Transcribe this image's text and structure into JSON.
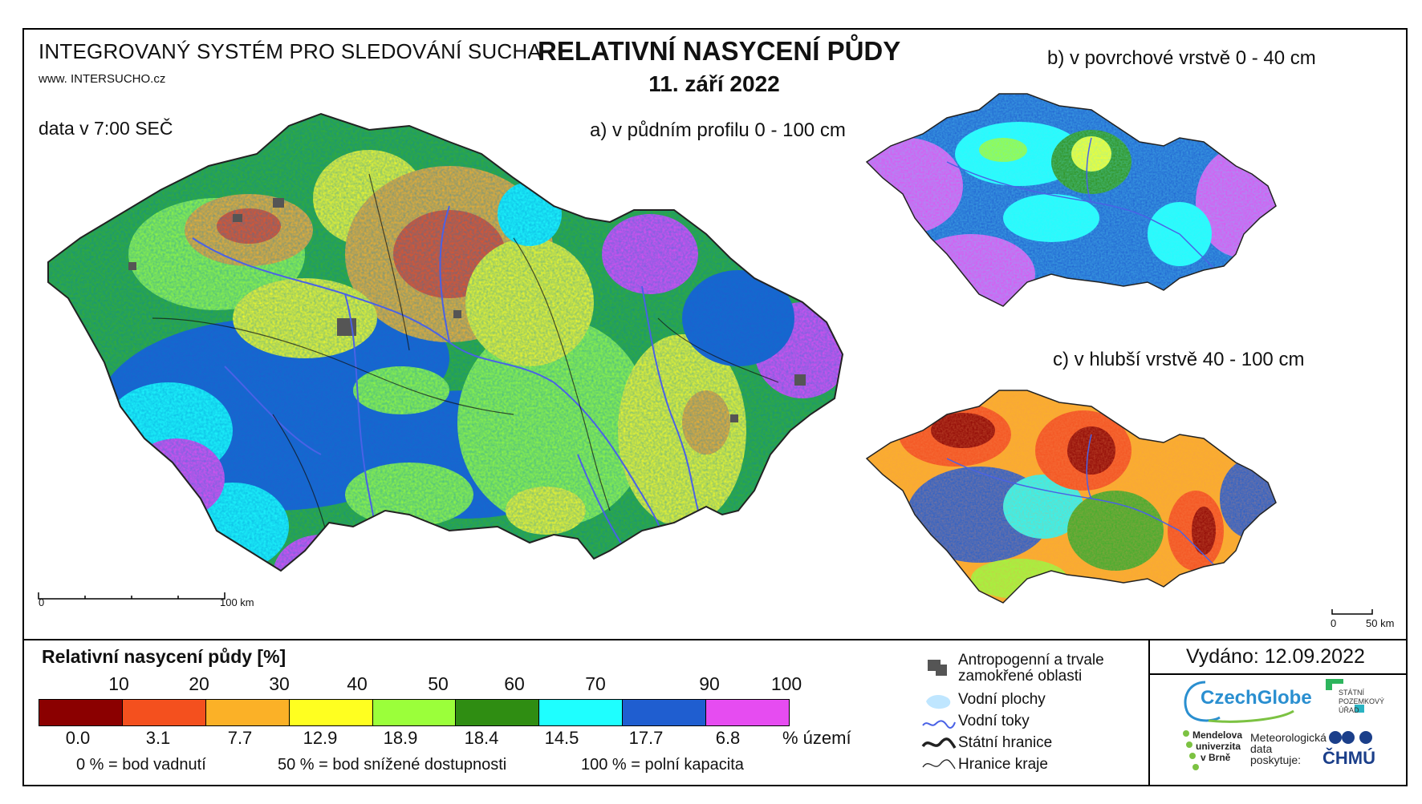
{
  "header": {
    "system": "INTEGROVANÝ SYSTÉM PRO SLEDOVÁNÍ SUCHA",
    "web": "www. INTERSUCHO.cz",
    "data_time": "data v 7:00 SEČ",
    "title": "RELATIVNÍ NASYCENÍ PŮDY",
    "date": "11. září 2022"
  },
  "maps": {
    "a_label": "a) v půdním profilu 0 - 100 cm",
    "b_label": "b) v povrchové vrstvě 0 - 40 cm",
    "c_label": "c) v hlubší vrstvě 40 - 100 cm",
    "scale_a": {
      "zero": "0",
      "end": "100 km"
    },
    "scale_c": {
      "zero": "0",
      "end": "50 km"
    }
  },
  "legend": {
    "title": "Relativní nasycení půdy [%]",
    "ticks": [
      "10",
      "20",
      "30",
      "40",
      "50",
      "60",
      "70",
      "90",
      "100"
    ],
    "classes": [
      {
        "color": "#8b0000",
        "pct": "0.0"
      },
      {
        "color": "#f4501e",
        "pct": "3.1"
      },
      {
        "color": "#fbb127",
        "pct": "7.7"
      },
      {
        "color": "#ffff20",
        "pct": "12.9"
      },
      {
        "color": "#9bff3a",
        "pct": "18.9"
      },
      {
        "color": "#2f8d12",
        "pct": "18.4"
      },
      {
        "color": "#1effff",
        "pct": "14.5"
      },
      {
        "color": "#1f5ed0",
        "pct": "17.7"
      },
      {
        "color": "#e64cf1",
        "pct": "6.8"
      }
    ],
    "pct_unit": "% území",
    "notes": {
      "zero": "0 %  = bod vadnutí",
      "fifty": "50 %  = bod snížené dostupnosti",
      "hundred": "100 %  = polní kapacita"
    },
    "symbols": {
      "antro_1": "Antropogenní a trvale",
      "antro_2": "zamokřené oblasti",
      "water_bodies": "Vodní plochy",
      "rivers": "Vodní toky",
      "state_border": "Státní hranice",
      "region_border": "Hranice kraje"
    }
  },
  "footer": {
    "issued": "Vydáno: 12.09.2022",
    "logo_czechglobe": "CzechGlobe",
    "logo_spu": [
      "STÁTNÍ",
      "POZEMKOVÝ",
      "ÚŘAD"
    ],
    "logo_mendel": [
      "Mendelova",
      "univerzita",
      "v Brně"
    ],
    "met_data": [
      "Meteorologická",
      "data",
      "poskytuje:"
    ],
    "logo_chmu": "ČHMÚ"
  },
  "colors": {
    "antro": "#555555",
    "river": "#4a62e6",
    "water": "#bfe6ff"
  }
}
